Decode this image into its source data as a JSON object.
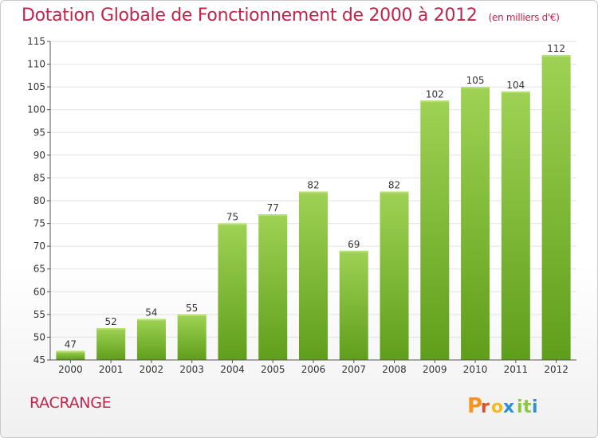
{
  "title": "Dotation Globale de Fonctionnement de 2000 à 2012",
  "unit": "(en milliers d'€)",
  "commune": "RACRANGE",
  "logo": "Proxiti",
  "colors": {
    "title": "#c0244b",
    "bar_top": "#9fd254",
    "bar_bottom": "#5f9e1b",
    "logo": [
      "#f7941d",
      "#e04e2c",
      "#f7b81d",
      "#2e8fd6",
      "#8dc63f",
      "#8dc63f",
      "#2e8fd6"
    ]
  },
  "chart_data": {
    "type": "bar",
    "categories": [
      "2000",
      "2001",
      "2002",
      "2003",
      "2004",
      "2005",
      "2006",
      "2007",
      "2008",
      "2009",
      "2010",
      "2011",
      "2012"
    ],
    "values": [
      47,
      52,
      54,
      55,
      75,
      77,
      82,
      69,
      82,
      102,
      105,
      104,
      112
    ],
    "ylim": [
      45,
      115
    ],
    "yticks": [
      45,
      50,
      55,
      60,
      65,
      70,
      75,
      80,
      85,
      90,
      95,
      100,
      105,
      110,
      115
    ],
    "grid": true
  }
}
